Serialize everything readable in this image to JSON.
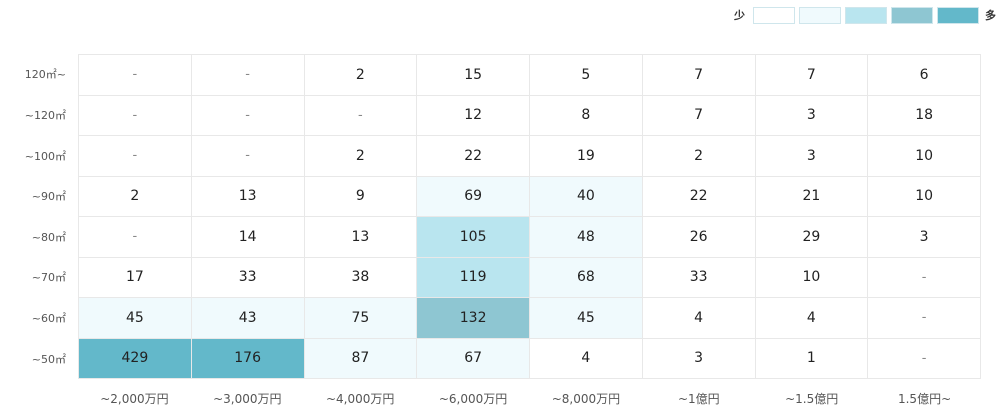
{
  "legend": {
    "low_label": "少",
    "high_label": "多",
    "swatches": [
      "#ffffff",
      "#f0fafd",
      "#b9e5ef",
      "#8ec6d2",
      "#63b8ca"
    ]
  },
  "chart_data": {
    "type": "heatmap",
    "x_categories": [
      "~2,000万円",
      "~3,000万円",
      "~4,000万円",
      "~6,000万円",
      "~8,000万円",
      "~1億円",
      "~1.5億円",
      "1.5億円~"
    ],
    "y_categories": [
      "120㎡~",
      "~120㎡",
      "~100㎡",
      "~90㎡",
      "~80㎡",
      "~70㎡",
      "~60㎡",
      "~50㎡"
    ],
    "values": [
      [
        null,
        null,
        2,
        15,
        5,
        7,
        7,
        6
      ],
      [
        null,
        null,
        null,
        12,
        8,
        7,
        3,
        18
      ],
      [
        null,
        null,
        2,
        22,
        19,
        2,
        3,
        10
      ],
      [
        2,
        13,
        9,
        69,
        40,
        22,
        21,
        10
      ],
      [
        null,
        14,
        13,
        105,
        48,
        26,
        29,
        3
      ],
      [
        17,
        33,
        38,
        119,
        68,
        33,
        10,
        null
      ],
      [
        45,
        43,
        75,
        132,
        45,
        4,
        4,
        null
      ],
      [
        429,
        176,
        87,
        67,
        4,
        3,
        1,
        null
      ]
    ],
    "empty_label": "-",
    "color_scale": {
      "bins": [
        0,
        40,
        100,
        130,
        150
      ],
      "colors": [
        "#ffffff",
        "#f0fafd",
        "#b9e5ef",
        "#8ec6d2",
        "#63b8ca"
      ]
    }
  }
}
